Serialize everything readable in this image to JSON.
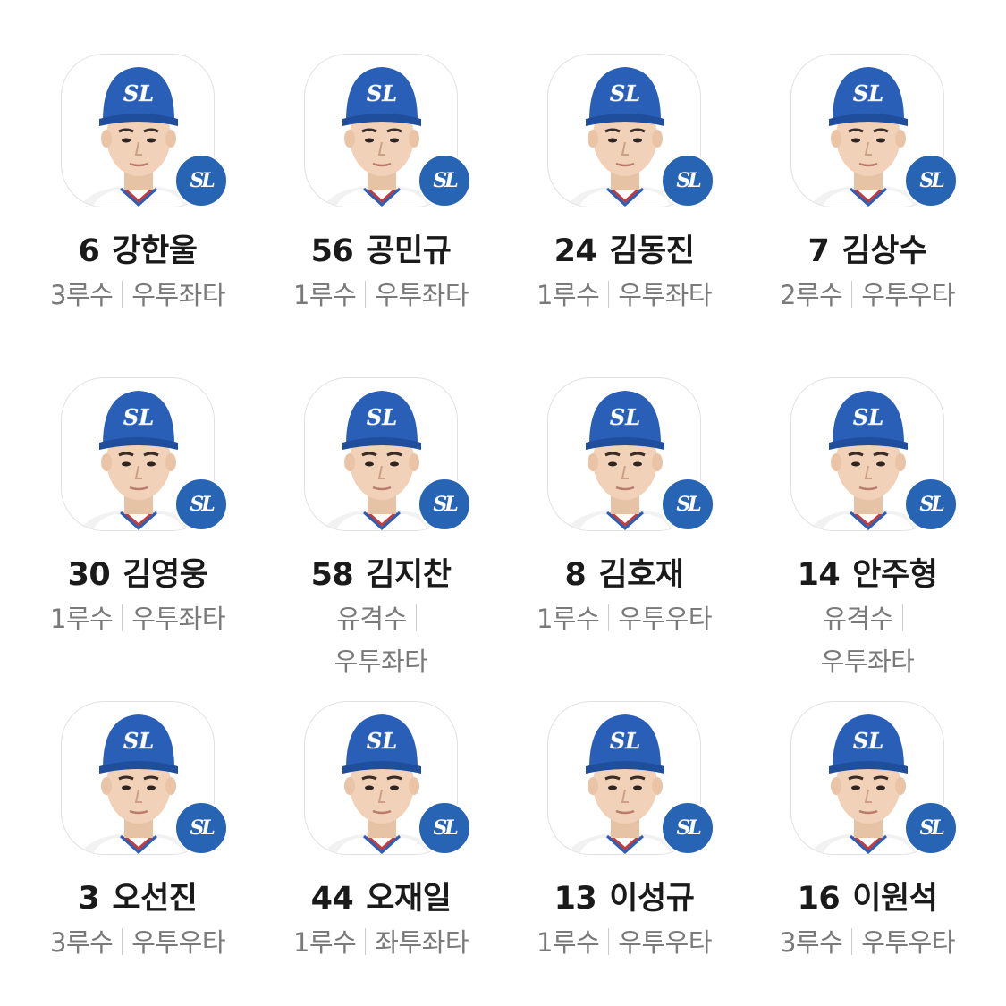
{
  "players": [
    {
      "number": "6",
      "name": "강한울",
      "position": "3루수",
      "bat_throw": "우투좌타"
    },
    {
      "number": "56",
      "name": "공민규",
      "position": "1루수",
      "bat_throw": "우투좌타"
    },
    {
      "number": "24",
      "name": "김동진",
      "position": "1루수",
      "bat_throw": "우투좌타"
    },
    {
      "number": "7",
      "name": "김상수",
      "position": "2루수",
      "bat_throw": "우투우타"
    },
    {
      "number": "30",
      "name": "김영웅",
      "position": "1루수",
      "bat_throw": "우투좌타"
    },
    {
      "number": "58",
      "name": "김지찬",
      "position": "유격수",
      "bat_throw": "우투좌타"
    },
    {
      "number": "8",
      "name": "김호재",
      "position": "1루수",
      "bat_throw": "우투우타"
    },
    {
      "number": "14",
      "name": "안주형",
      "position": "유격수",
      "bat_throw": "우투좌타"
    },
    {
      "number": "3",
      "name": "오선진",
      "position": "3루수",
      "bat_throw": "우투우타"
    },
    {
      "number": "44",
      "name": "오재일",
      "position": "1루수",
      "bat_throw": "좌투좌타"
    },
    {
      "number": "13",
      "name": "이성규",
      "position": "1루수",
      "bat_throw": "우투우타"
    },
    {
      "number": "16",
      "name": "이원석",
      "position": "3루수",
      "bat_throw": "우투우타"
    }
  ],
  "team_logo_text": "SL",
  "colors": {
    "cap_blue": "#2a5fb8",
    "badge_blue": "#2864b4",
    "name_text": "#1a1a1a",
    "meta_text": "#7a7a7a"
  }
}
